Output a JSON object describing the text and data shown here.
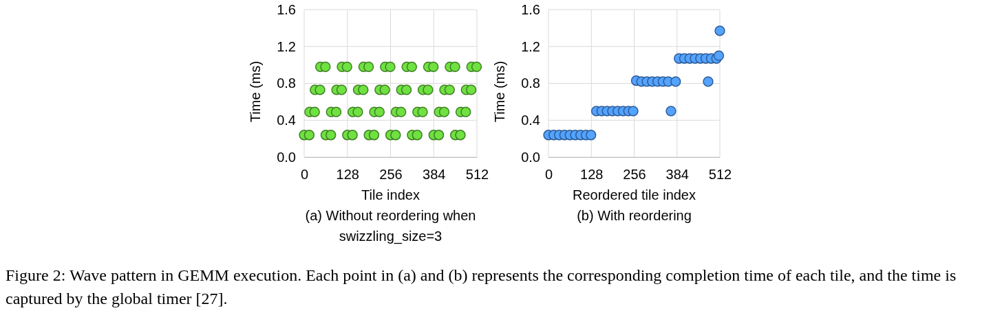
{
  "chart_data": [
    {
      "type": "scatter",
      "xlabel": "Tile index",
      "ylabel": "Time (ms)",
      "xlim": [
        0,
        512
      ],
      "ylim": [
        0,
        1.6
      ],
      "xticks": [
        0,
        128,
        256,
        384,
        512
      ],
      "yticks": [
        {
          "value": 0,
          "label": "0.0"
        },
        0.4,
        0.8,
        1.2,
        1.6
      ],
      "grid": true,
      "marker": "circle",
      "annotations": [
        "(a)  Without reordering when swizzling_size=3",
        "Figure 2: Wave pattern in GEMM execution. Each point in (a) and (b) represents the corresponding completion time of each tile, and the time is captured by the global timer [27]."
      ],
      "series": [
        {
          "color": "#3f7f25",
          "x": [
            0,
            15,
            64,
            79,
            128,
            143,
            192,
            207,
            256,
            271,
            320,
            335,
            384,
            399,
            448,
            463
          ],
          "values": [
            0.24,
            0.24,
            0.24,
            0.24,
            0.24,
            0.24,
            0.24,
            0.24,
            0.24,
            0.24,
            0.24,
            0.24,
            0.24,
            0.24,
            0.24,
            0.24
          ]
        },
        {
          "color": "#3f7f25",
          "x": [
            16,
            31,
            80,
            95,
            144,
            159,
            208,
            223,
            272,
            287,
            336,
            351,
            400,
            415,
            464,
            479
          ],
          "values": [
            0.49,
            0.49,
            0.49,
            0.49,
            0.49,
            0.49,
            0.49,
            0.49,
            0.49,
            0.49,
            0.49,
            0.49,
            0.49,
            0.49,
            0.49,
            0.49
          ]
        },
        {
          "color": "#3f7f25",
          "x": [
            32,
            47,
            96,
            111,
            160,
            175,
            224,
            239,
            288,
            303,
            352,
            367,
            416,
            431,
            480,
            495
          ],
          "values": [
            0.73,
            0.73,
            0.73,
            0.73,
            0.73,
            0.73,
            0.73,
            0.73,
            0.73,
            0.73,
            0.73,
            0.73,
            0.73,
            0.73,
            0.73,
            0.73
          ]
        },
        {
          "color": "#3f7f25",
          "x": [
            48,
            63,
            112,
            127,
            176,
            191,
            240,
            255,
            304,
            319,
            368,
            383,
            432,
            447,
            496,
            511
          ],
          "values": [
            0.98,
            0.98,
            0.98,
            0.98,
            0.98,
            0.98,
            0.98,
            0.98,
            0.98,
            0.98,
            0.98,
            0.98,
            0.98,
            0.98,
            0.98,
            0.98
          ]
        }
      ]
    },
    {
      "type": "scatter",
      "xlabel": "Reordered tile index",
      "ylabel": "Time (ms)",
      "xlim": [
        0,
        512
      ],
      "ylim": [
        0,
        1.6
      ],
      "xticks": [
        0,
        128,
        256,
        384,
        512
      ],
      "yticks": [
        {
          "value": 0,
          "label": "0.0"
        },
        0.4,
        0.8,
        1.2,
        1.6
      ],
      "grid": true,
      "marker": "circle",
      "annotations": [
        "(b) With reordering"
      ],
      "series": [
        {
          "color": "#2f5c98",
          "x": [
            0,
            16,
            32,
            48,
            64,
            80,
            96,
            112,
            127,
            143,
            159,
            175,
            191,
            207,
            223,
            239,
            253,
            366,
            262,
            278,
            294,
            310,
            326,
            342,
            358,
            380,
            477,
            390,
            406,
            422,
            438,
            454,
            470,
            486,
            502,
            509,
            512
          ],
          "values": [
            0.24,
            0.24,
            0.24,
            0.24,
            0.24,
            0.24,
            0.24,
            0.24,
            0.24,
            0.5,
            0.5,
            0.5,
            0.5,
            0.5,
            0.5,
            0.5,
            0.5,
            0.5,
            0.83,
            0.82,
            0.82,
            0.82,
            0.82,
            0.82,
            0.82,
            0.82,
            0.82,
            1.07,
            1.07,
            1.07,
            1.07,
            1.07,
            1.07,
            1.07,
            1.07,
            1.1,
            1.37
          ]
        }
      ]
    }
  ]
}
